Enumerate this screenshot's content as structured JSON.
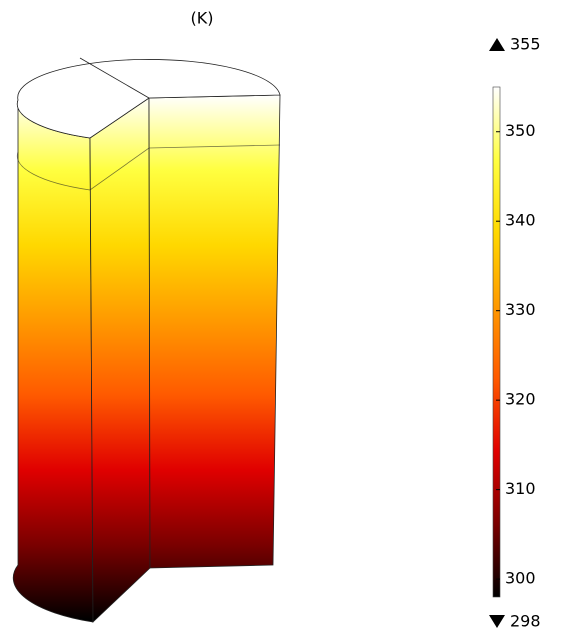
{
  "chart_data": {
    "type": "surface",
    "title": "(K)",
    "max": 355,
    "min": 298,
    "cticks": [
      300,
      310,
      320,
      330,
      340,
      350
    ],
    "colormap": [
      "#000000",
      "#7a0000",
      "#e00000",
      "#ff5a00",
      "#ff9a00",
      "#ffd800",
      "#ffff40",
      "#ffffff"
    ]
  }
}
